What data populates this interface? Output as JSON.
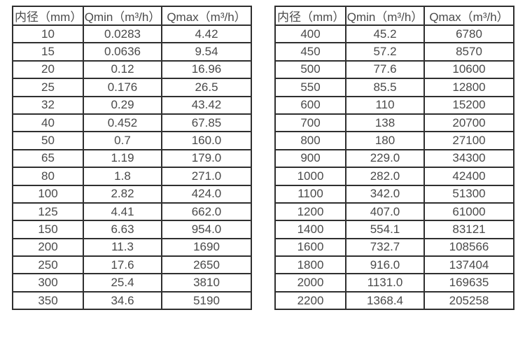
{
  "colors": {
    "border": "#2f2f2f",
    "text": "#4a4a4a",
    "background": "#ffffff"
  },
  "chart_data": [
    {
      "type": "table",
      "title": "",
      "columns": [
        "内径（mm）",
        "Qmin（m³/h）",
        "Qmax（m³/h）"
      ],
      "rows": [
        [
          "10",
          "0.0283",
          "4.42"
        ],
        [
          "15",
          "0.0636",
          "9.54"
        ],
        [
          "20",
          "0.12",
          "16.96"
        ],
        [
          "25",
          "0.176",
          "26.5"
        ],
        [
          "32",
          "0.29",
          "43.42"
        ],
        [
          "40",
          "0.452",
          "67.85"
        ],
        [
          "50",
          "0.7",
          "160.0"
        ],
        [
          "65",
          "1.19",
          "179.0"
        ],
        [
          "80",
          "1.8",
          "271.0"
        ],
        [
          "100",
          "2.82",
          "424.0"
        ],
        [
          "125",
          "4.41",
          "662.0"
        ],
        [
          "150",
          "6.63",
          "954.0"
        ],
        [
          "200",
          "11.3",
          "1690"
        ],
        [
          "250",
          "17.6",
          "2650"
        ],
        [
          "300",
          "25.4",
          "3810"
        ],
        [
          "350",
          "34.6",
          "5190"
        ]
      ]
    },
    {
      "type": "table",
      "title": "",
      "columns": [
        "内径（mm）",
        "Qmin（m³/h）",
        "Qmax（m³/h）"
      ],
      "rows": [
        [
          "400",
          "45.2",
          "6780"
        ],
        [
          "450",
          "57.2",
          "8570"
        ],
        [
          "500",
          "77.6",
          "10600"
        ],
        [
          "550",
          "85.5",
          "12800"
        ],
        [
          "600",
          "110",
          "15200"
        ],
        [
          "700",
          "138",
          "20700"
        ],
        [
          "800",
          "180",
          "27100"
        ],
        [
          "900",
          "229.0",
          "34300"
        ],
        [
          "1000",
          "282.0",
          "42400"
        ],
        [
          "1100",
          "342.0",
          "51300"
        ],
        [
          "1200",
          "407.0",
          "61000"
        ],
        [
          "1400",
          "554.1",
          "83121"
        ],
        [
          "1600",
          "732.7",
          "108566"
        ],
        [
          "1800",
          "916.0",
          "137404"
        ],
        [
          "2000",
          "1131.0",
          "169635"
        ],
        [
          "2200",
          "1368.4",
          "205258"
        ]
      ]
    }
  ]
}
